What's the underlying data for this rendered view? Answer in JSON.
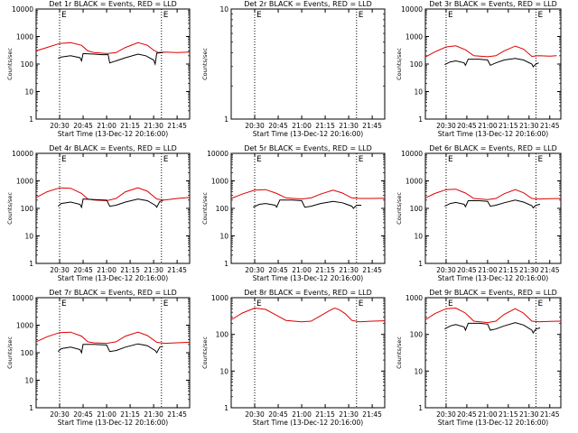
{
  "common": {
    "xlabel": "Start Time (13-Dec-12 20:16:00)",
    "ylabel": "Counts/sec",
    "x_ticks": [
      "20:30",
      "20:45",
      "21:00",
      "21:15",
      "21:30",
      "21:45"
    ],
    "x_tick_minutes": [
      30,
      45,
      60,
      75,
      90,
      105
    ],
    "x_range_minutes": [
      15,
      113
    ],
    "event_marker_minutes": [
      30,
      95
    ],
    "marker_label": "E",
    "series_colors": {
      "events": "#000000",
      "lld": "#dd0000"
    }
  },
  "chart_data": [
    {
      "type": "line",
      "title": "Det 1r BLACK = Events, RED = LLD",
      "yscale": "log",
      "y_ticks": [
        1,
        10,
        100,
        1000,
        10000
      ],
      "ylim": [
        1,
        10000
      ],
      "series": [
        {
          "values": [
            [
              15,
              300
            ],
            [
              22,
              400
            ],
            [
              30,
              560
            ],
            [
              37,
              600
            ],
            [
              44,
              480
            ],
            [
              48,
              300
            ],
            [
              52,
              260
            ],
            [
              60,
              240
            ],
            [
              66,
              260
            ],
            [
              72,
              400
            ],
            [
              80,
              600
            ],
            [
              86,
              480
            ],
            [
              90,
              320
            ],
            [
              93,
              260
            ],
            [
              97,
              270
            ],
            [
              105,
              260
            ],
            [
              113,
              270
            ]
          ]
        },
        {
          "values": [
            [
              29,
              160
            ],
            [
              31,
              180
            ],
            [
              37,
              200
            ],
            [
              43,
              170
            ],
            [
              44,
              130
            ],
            [
              45,
              240
            ],
            [
              52,
              230
            ],
            [
              57,
              220
            ],
            [
              61,
              220
            ],
            [
              62,
              110
            ],
            [
              66,
              130
            ],
            [
              72,
              170
            ],
            [
              80,
              230
            ],
            [
              85,
              200
            ],
            [
              90,
              140
            ],
            [
              91,
              100
            ],
            [
              92,
              250
            ],
            [
              96,
              260
            ]
          ]
        }
      ]
    },
    {
      "type": "line",
      "title": "Det 2r BLACK = Events, RED = LLD",
      "yscale": "log",
      "y_ticks": [
        1,
        10
      ],
      "ylim": [
        1,
        10
      ],
      "series": []
    },
    {
      "type": "line",
      "title": "Det 3r BLACK = Events, RED = LLD",
      "yscale": "log",
      "y_ticks": [
        1,
        10,
        100,
        1000,
        10000
      ],
      "ylim": [
        1,
        10000
      ],
      "series": [
        {
          "values": [
            [
              15,
              180
            ],
            [
              22,
              280
            ],
            [
              30,
              420
            ],
            [
              37,
              460
            ],
            [
              44,
              330
            ],
            [
              50,
              200
            ],
            [
              60,
              185
            ],
            [
              66,
              200
            ],
            [
              72,
              300
            ],
            [
              80,
              450
            ],
            [
              86,
              350
            ],
            [
              92,
              190
            ],
            [
              97,
              200
            ],
            [
              105,
              195
            ],
            [
              110,
              200
            ]
          ]
        },
        {
          "values": [
            [
              29,
              95
            ],
            [
              33,
              120
            ],
            [
              37,
              130
            ],
            [
              43,
              110
            ],
            [
              44,
              90
            ],
            [
              46,
              150
            ],
            [
              54,
              150
            ],
            [
              60,
              140
            ],
            [
              62,
              90
            ],
            [
              66,
              110
            ],
            [
              72,
              140
            ],
            [
              80,
              160
            ],
            [
              86,
              140
            ],
            [
              92,
              100
            ],
            [
              93,
              80
            ],
            [
              95,
              100
            ],
            [
              97,
              110
            ]
          ]
        }
      ]
    },
    {
      "type": "line",
      "title": "Det 4r BLACK = Events, RED = LLD",
      "yscale": "log",
      "y_ticks": [
        1,
        10,
        100,
        1000,
        10000
      ],
      "ylim": [
        1,
        10000
      ],
      "series": [
        {
          "values": [
            [
              15,
              250
            ],
            [
              22,
              400
            ],
            [
              30,
              560
            ],
            [
              37,
              540
            ],
            [
              44,
              350
            ],
            [
              48,
              220
            ],
            [
              52,
              200
            ],
            [
              60,
              190
            ],
            [
              66,
              230
            ],
            [
              72,
              400
            ],
            [
              80,
              560
            ],
            [
              86,
              420
            ],
            [
              92,
              220
            ],
            [
              97,
              200
            ],
            [
              105,
              230
            ],
            [
              113,
              250
            ]
          ]
        },
        {
          "values": [
            [
              29,
              120
            ],
            [
              31,
              150
            ],
            [
              37,
              170
            ],
            [
              43,
              140
            ],
            [
              44,
              110
            ],
            [
              45,
              220
            ],
            [
              52,
              210
            ],
            [
              60,
              200
            ],
            [
              62,
              120
            ],
            [
              66,
              130
            ],
            [
              72,
              170
            ],
            [
              80,
              220
            ],
            [
              86,
              190
            ],
            [
              91,
              130
            ],
            [
              92,
              110
            ],
            [
              94,
              180
            ],
            [
              96,
              190
            ]
          ]
        }
      ]
    },
    {
      "type": "line",
      "title": "Det 5r BLACK = Events, RED = LLD",
      "yscale": "log",
      "y_ticks": [
        1,
        10,
        100,
        1000,
        10000
      ],
      "ylim": [
        1,
        10000
      ],
      "series": [
        {
          "values": [
            [
              15,
              230
            ],
            [
              22,
              330
            ],
            [
              30,
              460
            ],
            [
              37,
              480
            ],
            [
              44,
              350
            ],
            [
              50,
              240
            ],
            [
              60,
              220
            ],
            [
              66,
              240
            ],
            [
              72,
              330
            ],
            [
              80,
              460
            ],
            [
              86,
              360
            ],
            [
              92,
              240
            ],
            [
              97,
              230
            ],
            [
              105,
              230
            ],
            [
              113,
              235
            ]
          ]
        },
        {
          "values": [
            [
              29,
              110
            ],
            [
              33,
              140
            ],
            [
              37,
              150
            ],
            [
              43,
              130
            ],
            [
              44,
              110
            ],
            [
              46,
              200
            ],
            [
              54,
              200
            ],
            [
              60,
              190
            ],
            [
              62,
              110
            ],
            [
              66,
              120
            ],
            [
              72,
              150
            ],
            [
              80,
              180
            ],
            [
              86,
              160
            ],
            [
              92,
              120
            ],
            [
              93,
              100
            ],
            [
              95,
              130
            ],
            [
              98,
              130
            ]
          ]
        }
      ]
    },
    {
      "type": "line",
      "title": "Det 6r BLACK = Events, RED = LLD",
      "yscale": "log",
      "y_ticks": [
        1,
        10,
        100,
        1000,
        10000
      ],
      "ylim": [
        1,
        10000
      ],
      "series": [
        {
          "values": [
            [
              15,
              240
            ],
            [
              22,
              350
            ],
            [
              30,
              480
            ],
            [
              37,
              500
            ],
            [
              44,
              360
            ],
            [
              50,
              230
            ],
            [
              60,
              210
            ],
            [
              66,
              230
            ],
            [
              72,
              340
            ],
            [
              80,
              480
            ],
            [
              86,
              370
            ],
            [
              92,
              230
            ],
            [
              97,
              220
            ],
            [
              105,
              225
            ],
            [
              113,
              230
            ]
          ]
        },
        {
          "values": [
            [
              29,
              120
            ],
            [
              33,
              150
            ],
            [
              37,
              165
            ],
            [
              43,
              140
            ],
            [
              44,
              115
            ],
            [
              46,
              190
            ],
            [
              54,
              190
            ],
            [
              60,
              180
            ],
            [
              62,
              120
            ],
            [
              66,
              130
            ],
            [
              72,
              160
            ],
            [
              80,
              200
            ],
            [
              86,
              170
            ],
            [
              92,
              125
            ],
            [
              93,
              105
            ],
            [
              95,
              130
            ],
            [
              98,
              140
            ]
          ]
        }
      ]
    },
    {
      "type": "line",
      "title": "Det 7r BLACK = Events, RED = LLD",
      "yscale": "log",
      "y_ticks": [
        1,
        10,
        100,
        1000,
        10000
      ],
      "ylim": [
        1,
        10000
      ],
      "series": [
        {
          "values": [
            [
              15,
              250
            ],
            [
              22,
              380
            ],
            [
              30,
              540
            ],
            [
              37,
              560
            ],
            [
              44,
              400
            ],
            [
              48,
              250
            ],
            [
              52,
              230
            ],
            [
              60,
              220
            ],
            [
              66,
              250
            ],
            [
              72,
              400
            ],
            [
              80,
              560
            ],
            [
              86,
              420
            ],
            [
              92,
              240
            ],
            [
              97,
              220
            ],
            [
              105,
              230
            ],
            [
              113,
              240
            ]
          ]
        },
        {
          "values": [
            [
              29,
              110
            ],
            [
              31,
              140
            ],
            [
              37,
              160
            ],
            [
              43,
              130
            ],
            [
              44,
              100
            ],
            [
              45,
              200
            ],
            [
              52,
              200
            ],
            [
              60,
              190
            ],
            [
              62,
              110
            ],
            [
              66,
              120
            ],
            [
              72,
              160
            ],
            [
              80,
              210
            ],
            [
              86,
              180
            ],
            [
              91,
              120
            ],
            [
              92,
              100
            ],
            [
              94,
              160
            ],
            [
              96,
              170
            ]
          ]
        }
      ]
    },
    {
      "type": "line",
      "title": "Det 8r BLACK = Events, RED = LLD",
      "yscale": "log",
      "y_ticks": [
        1,
        10,
        100,
        1000
      ],
      "ylim": [
        1,
        1000
      ],
      "series": [
        {
          "values": [
            [
              15,
              250
            ],
            [
              22,
              380
            ],
            [
              30,
              520
            ],
            [
              37,
              480
            ],
            [
              44,
              330
            ],
            [
              50,
              240
            ],
            [
              60,
              220
            ],
            [
              66,
              230
            ],
            [
              72,
              320
            ],
            [
              78,
              450
            ],
            [
              81,
              520
            ],
            [
              84,
              470
            ],
            [
              88,
              360
            ],
            [
              92,
              240
            ],
            [
              97,
              220
            ],
            [
              105,
              230
            ],
            [
              113,
              235
            ]
          ]
        }
      ]
    },
    {
      "type": "line",
      "title": "Det 9r BLACK = Events, RED = LLD",
      "yscale": "log",
      "y_ticks": [
        1,
        10,
        100,
        1000
      ],
      "ylim": [
        1,
        1000
      ],
      "series": [
        {
          "values": [
            [
              15,
              250
            ],
            [
              22,
              370
            ],
            [
              30,
              500
            ],
            [
              37,
              520
            ],
            [
              44,
              380
            ],
            [
              50,
              230
            ],
            [
              60,
              210
            ],
            [
              66,
              230
            ],
            [
              72,
              350
            ],
            [
              80,
              500
            ],
            [
              86,
              380
            ],
            [
              92,
              230
            ],
            [
              97,
              220
            ],
            [
              105,
              225
            ],
            [
              113,
              230
            ]
          ]
        },
        {
          "values": [
            [
              29,
              140
            ],
            [
              33,
              170
            ],
            [
              37,
              185
            ],
            [
              43,
              160
            ],
            [
              44,
              130
            ],
            [
              46,
              200
            ],
            [
              54,
              200
            ],
            [
              60,
              190
            ],
            [
              62,
              130
            ],
            [
              66,
              140
            ],
            [
              72,
              170
            ],
            [
              80,
              210
            ],
            [
              86,
              180
            ],
            [
              92,
              130
            ],
            [
              93,
              110
            ],
            [
              95,
              140
            ],
            [
              98,
              150
            ]
          ]
        }
      ]
    }
  ]
}
